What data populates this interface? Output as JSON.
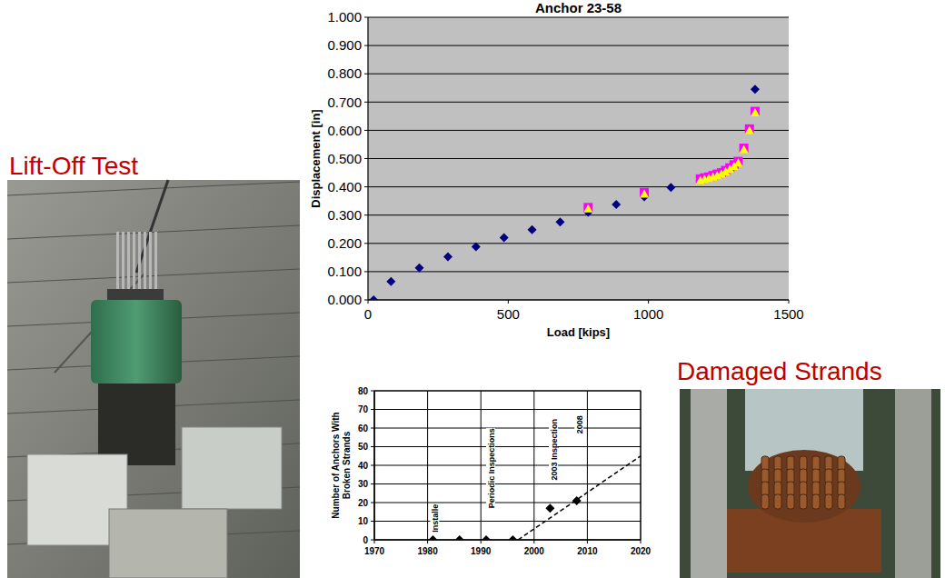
{
  "chart_data": [
    {
      "type": "scatter",
      "title": "Anchor 23-58",
      "x_label": "Load [kips]",
      "y_label": "Displacement [in]",
      "xlim": [
        0,
        1500
      ],
      "xticks": [
        0,
        500,
        1000,
        1500
      ],
      "ylim": [
        0,
        1
      ],
      "yticks": [
        {
          "value": 0,
          "label": "0.000"
        },
        {
          "value": 0.1,
          "label": "0.100"
        },
        {
          "value": 0.2,
          "label": "0.200"
        },
        {
          "value": 0.3,
          "label": "0.300"
        },
        {
          "value": 0.4,
          "label": "0.400"
        },
        {
          "value": 0.5,
          "label": "0.500"
        },
        {
          "value": 0.6,
          "label": "0.600"
        },
        {
          "value": 0.7,
          "label": "0.700"
        },
        {
          "value": 0.8,
          "label": "0.800"
        },
        {
          "value": 0.9,
          "label": "0.900"
        },
        {
          "value": 1,
          "label": "1.000"
        }
      ],
      "grid": "y",
      "series": [
        {
          "color": "#000080",
          "marker": "diamond",
          "x": [
            20,
            82,
            183,
            285,
            385,
            485,
            585,
            685,
            785,
            885,
            985,
            1080,
            1380
          ],
          "values": [
            0,
            0.065,
            0.113,
            0.153,
            0.188,
            0.22,
            0.248,
            0.276,
            0.31,
            0.338,
            0.365,
            0.398,
            0.745
          ]
        },
        {
          "color": "#ff00ff",
          "marker": "square",
          "x": [
            785,
            985,
            1185,
            1200,
            1215,
            1230,
            1245,
            1260,
            1275,
            1290,
            1305,
            1320,
            1340,
            1360,
            1380
          ],
          "values": [
            0.327,
            0.38,
            0.428,
            0.432,
            0.435,
            0.44,
            0.445,
            0.45,
            0.458,
            0.467,
            0.478,
            0.49,
            0.537,
            0.605,
            0.667
          ]
        },
        {
          "color": "#ffff00",
          "marker": "triangle",
          "x": [
            785,
            985,
            1185,
            1200,
            1215,
            1230,
            1245,
            1260,
            1275,
            1290,
            1305,
            1320,
            1340,
            1360,
            1380
          ],
          "values": [
            0.322,
            0.375,
            0.423,
            0.427,
            0.43,
            0.435,
            0.44,
            0.445,
            0.453,
            0.462,
            0.473,
            0.485,
            0.532,
            0.6,
            0.662
          ]
        }
      ]
    },
    {
      "type": "scatter",
      "y_label": "Number of Anchors With Broken Strands",
      "xlim": [
        1970,
        2020
      ],
      "xticks": [
        1970,
        1980,
        1990,
        2000,
        2010,
        2020
      ],
      "ylim": [
        0,
        80
      ],
      "yticks": [
        0,
        10,
        20,
        30,
        40,
        50,
        60,
        70,
        80
      ],
      "grid": true,
      "series": [
        {
          "color": "#000000",
          "marker": "diamond",
          "x": [
            1981,
            1986,
            1991,
            1996,
            2003,
            2008
          ],
          "values": [
            0,
            0,
            0,
            0,
            17,
            21
          ]
        },
        {
          "type": "line",
          "color": "#000000",
          "line_style": "dashed",
          "marker": "none",
          "x": [
            1997,
            2020
          ],
          "values": [
            0,
            45
          ]
        }
      ],
      "annotations": [
        {
          "text": "Installe",
          "x": 1981.5,
          "y": 3
        },
        {
          "text": "Periodic Inspections",
          "x": 1992,
          "y": 16
        },
        {
          "text": "2003 Inspection",
          "x": 2003.8,
          "y": 31
        },
        {
          "text": "2008",
          "x": 2008.6,
          "y": 56
        }
      ]
    }
  ],
  "captions": [
    {
      "text": "Lift-Off Test"
    },
    {
      "text": "Damaged Strands"
    }
  ]
}
